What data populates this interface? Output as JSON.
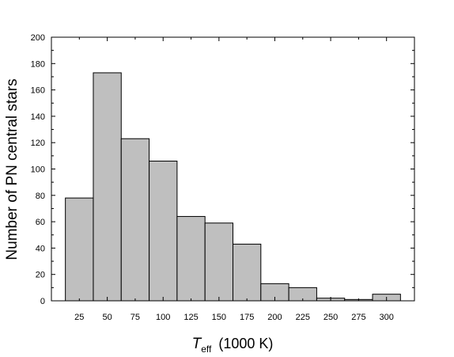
{
  "chart_data": {
    "type": "bar",
    "histogram": true,
    "bin_width": 25,
    "x_bin_centers": [
      25,
      50,
      75,
      100,
      125,
      150,
      175,
      200,
      225,
      250,
      275,
      300
    ],
    "values": [
      78,
      173,
      123,
      106,
      64,
      59,
      43,
      13,
      10,
      2,
      1,
      5
    ],
    "xlabel_main": "T",
    "xlabel_sub": "eff",
    "xlabel_unit": "(1000 K)",
    "ylabel": "Number of PN central stars",
    "xlim": [
      0,
      325
    ],
    "ylim": [
      0,
      200
    ],
    "x_tick_labels": [
      "25",
      "50",
      "75",
      "100",
      "125",
      "150",
      "175",
      "200",
      "225",
      "250",
      "275",
      "300"
    ],
    "y_tick_labels": [
      "0",
      "20",
      "40",
      "60",
      "80",
      "100",
      "120",
      "140",
      "160",
      "180",
      "200"
    ],
    "y_tick_values": [
      0,
      20,
      40,
      60,
      80,
      100,
      120,
      140,
      160,
      180,
      200
    ],
    "bar_color": "#bfbfbf",
    "edge_color": "#000000",
    "grid": false
  }
}
